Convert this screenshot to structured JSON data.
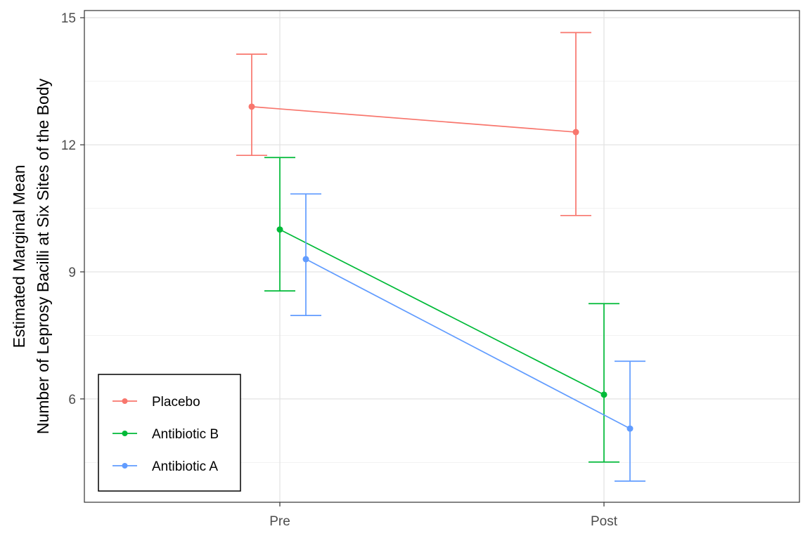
{
  "chart_data": {
    "type": "line",
    "title": "",
    "xlabel": "",
    "ylabel_lines": [
      "Estimated Marginal Mean",
      "Number of Leprosy Bacilli at Six Sites of the Body"
    ],
    "categories": [
      "Pre",
      "Post"
    ],
    "ylim": [
      3.56,
      15.17
    ],
    "yticks": [
      6,
      9,
      12,
      15
    ],
    "grid": true,
    "legend_position": "bottom-left",
    "series": [
      {
        "name": "Placebo",
        "color": "#F8766D",
        "values": [
          12.9,
          12.3
        ],
        "lower": [
          11.75,
          10.33
        ],
        "upper": [
          14.14,
          14.65
        ]
      },
      {
        "name": "Antibiotic B",
        "color": "#00BA38",
        "values": [
          10.0,
          6.1
        ],
        "lower": [
          8.55,
          4.51
        ],
        "upper": [
          11.7,
          8.25
        ]
      },
      {
        "name": "Antibiotic A",
        "color": "#619CFF",
        "values": [
          9.3,
          5.3
        ],
        "lower": [
          7.97,
          4.06
        ],
        "upper": [
          10.84,
          6.89
        ]
      }
    ]
  }
}
